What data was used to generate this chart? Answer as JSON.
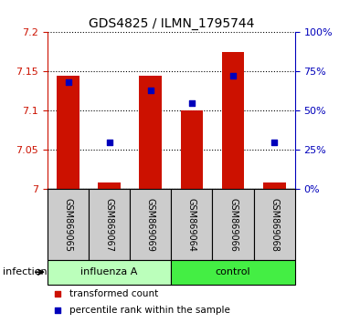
{
  "title": "GDS4825 / ILMN_1795744",
  "samples": [
    "GSM869065",
    "GSM869067",
    "GSM869069",
    "GSM869064",
    "GSM869066",
    "GSM869068"
  ],
  "bar_values": [
    7.145,
    7.008,
    7.145,
    7.1,
    7.175,
    7.008
  ],
  "bar_base": 7.0,
  "percentile_values": [
    0.68,
    0.3,
    0.63,
    0.55,
    0.72,
    0.3
  ],
  "bar_color": "#cc1100",
  "dot_color": "#0000bb",
  "ylim_left": [
    7.0,
    7.2
  ],
  "ylim_right": [
    0.0,
    1.0
  ],
  "yticks_left": [
    7.0,
    7.05,
    7.1,
    7.15,
    7.2
  ],
  "ytick_labels_left": [
    "7",
    "7.05",
    "7.1",
    "7.15",
    "7.2"
  ],
  "yticks_right": [
    0.0,
    0.25,
    0.5,
    0.75,
    1.0
  ],
  "ytick_labels_right": [
    "0%",
    "25%",
    "50%",
    "75%",
    "100%"
  ],
  "group_spans": [
    {
      "name": "influenza A",
      "start": 0,
      "end": 2,
      "color": "#bbffbb"
    },
    {
      "name": "control",
      "start": 3,
      "end": 5,
      "color": "#44ee44"
    }
  ],
  "tick_area_bg": "#cccccc",
  "infection_label": "infection",
  "legend_entries": [
    {
      "label": "transformed count",
      "color": "#cc1100",
      "marker": "s"
    },
    {
      "label": "percentile rank within the sample",
      "color": "#0000bb",
      "marker": "s"
    }
  ]
}
